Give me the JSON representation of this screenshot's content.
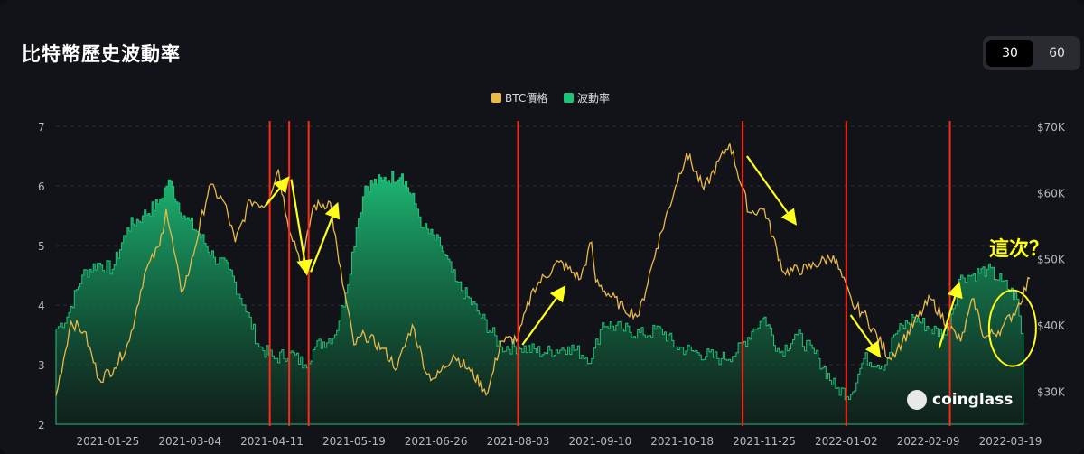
{
  "title": "比特幣歷史波動率",
  "period_options": [
    "30",
    "60"
  ],
  "selected_period": "30",
  "watermark": "coinglass",
  "annotation_text": "這次？",
  "colors": {
    "price": "#e9b949",
    "volatility": "#1ec37a",
    "marker": "#ff2a17",
    "arrow": "#ffff1a",
    "background": "#121318"
  },
  "chart_data": {
    "type": "area",
    "legend": [
      "BTC價格",
      "波動率"
    ],
    "legend_position": "top-center",
    "grid": true,
    "x_tick_labels": [
      "2021-01-25",
      "2021-03-04",
      "2021-04-11",
      "2021-05-19",
      "2021-06-26",
      "2021-08-03",
      "2021-09-10",
      "2021-10-18",
      "2021-11-25",
      "2022-01-02",
      "2022-02-09",
      "2022-03-19"
    ],
    "x_range": [
      "2021-01-01",
      "2022-03-28"
    ],
    "y_left": {
      "label": "",
      "range": [
        2,
        7
      ],
      "ticks": [
        "2",
        "3",
        "4",
        "5",
        "6",
        "7"
      ]
    },
    "y_right": {
      "label": "",
      "range": [
        25000,
        70000
      ],
      "ticks": [
        "$30K",
        "$40K",
        "$50K",
        "$60K",
        "$70K"
      ]
    },
    "series": [
      {
        "name": "BTC價格",
        "axis": "right",
        "points": [
          [
            "2021-01-01",
            29300
          ],
          [
            "2021-01-08",
            40500
          ],
          [
            "2021-01-14",
            39000
          ],
          [
            "2021-01-21",
            31800
          ],
          [
            "2021-01-28",
            33500
          ],
          [
            "2021-02-04",
            37600
          ],
          [
            "2021-02-11",
            47800
          ],
          [
            "2021-02-18",
            52000
          ],
          [
            "2021-02-21",
            57500
          ],
          [
            "2021-02-28",
            45000
          ],
          [
            "2021-03-04",
            48500
          ],
          [
            "2021-03-13",
            61000
          ],
          [
            "2021-03-20",
            58500
          ],
          [
            "2021-03-25",
            52500
          ],
          [
            "2021-04-01",
            58800
          ],
          [
            "2021-04-08",
            58100
          ],
          [
            "2021-04-14",
            63500
          ],
          [
            "2021-04-18",
            56000
          ],
          [
            "2021-04-25",
            49000
          ],
          [
            "2021-04-30",
            57800
          ],
          [
            "2021-05-08",
            58500
          ],
          [
            "2021-05-12",
            49500
          ],
          [
            "2021-05-19",
            37000
          ],
          [
            "2021-05-24",
            38500
          ],
          [
            "2021-06-01",
            36500
          ],
          [
            "2021-06-08",
            33500
          ],
          [
            "2021-06-15",
            40000
          ],
          [
            "2021-06-22",
            32500
          ],
          [
            "2021-06-26",
            32000
          ],
          [
            "2021-07-04",
            35500
          ],
          [
            "2021-07-12",
            33000
          ],
          [
            "2021-07-20",
            29800
          ],
          [
            "2021-07-26",
            37500
          ],
          [
            "2021-08-03",
            38000
          ],
          [
            "2021-08-10",
            45500
          ],
          [
            "2021-08-22",
            49500
          ],
          [
            "2021-09-01",
            47000
          ],
          [
            "2021-09-06",
            52500
          ],
          [
            "2021-09-08",
            46500
          ],
          [
            "2021-09-21",
            42500
          ],
          [
            "2021-09-28",
            41500
          ],
          [
            "2021-10-06",
            51500
          ],
          [
            "2021-10-15",
            61000
          ],
          [
            "2021-10-20",
            66000
          ],
          [
            "2021-10-28",
            60500
          ],
          [
            "2021-11-09",
            67500
          ],
          [
            "2021-11-18",
            57000
          ],
          [
            "2021-11-25",
            57500
          ],
          [
            "2021-12-04",
            48000
          ],
          [
            "2021-12-15",
            48500
          ],
          [
            "2021-12-27",
            50500
          ],
          [
            "2022-01-05",
            43000
          ],
          [
            "2022-01-10",
            41800
          ],
          [
            "2022-01-22",
            35000
          ],
          [
            "2022-01-28",
            37500
          ],
          [
            "2022-02-10",
            44000
          ],
          [
            "2022-02-18",
            40000
          ],
          [
            "2022-02-24",
            37500
          ],
          [
            "2022-03-02",
            44000
          ],
          [
            "2022-03-07",
            38000
          ],
          [
            "2022-03-15",
            39500
          ],
          [
            "2022-03-22",
            42500
          ],
          [
            "2022-03-28",
            47000
          ]
        ]
      },
      {
        "name": "波動率",
        "axis": "left",
        "points": [
          [
            "2021-01-01",
            3.6
          ],
          [
            "2021-01-06",
            3.8
          ],
          [
            "2021-01-13",
            4.5
          ],
          [
            "2021-01-20",
            4.7
          ],
          [
            "2021-01-27",
            4.6
          ],
          [
            "2021-02-03",
            5.3
          ],
          [
            "2021-02-10",
            5.5
          ],
          [
            "2021-02-17",
            5.7
          ],
          [
            "2021-02-22",
            6.1
          ],
          [
            "2021-03-01",
            5.5
          ],
          [
            "2021-03-08",
            5.2
          ],
          [
            "2021-03-15",
            4.8
          ],
          [
            "2021-03-22",
            4.6
          ],
          [
            "2021-03-29",
            4.0
          ],
          [
            "2021-04-05",
            3.3
          ],
          [
            "2021-04-12",
            3.1
          ],
          [
            "2021-04-19",
            3.2
          ],
          [
            "2021-04-26",
            3.0
          ],
          [
            "2021-05-01",
            3.3
          ],
          [
            "2021-05-10",
            3.5
          ],
          [
            "2021-05-15",
            4.2
          ],
          [
            "2021-05-20",
            5.3
          ],
          [
            "2021-05-24",
            6.0
          ],
          [
            "2021-06-01",
            6.1
          ],
          [
            "2021-06-10",
            6.2
          ],
          [
            "2021-06-16",
            5.7
          ],
          [
            "2021-06-20",
            5.3
          ],
          [
            "2021-06-28",
            5.0
          ],
          [
            "2021-07-05",
            4.4
          ],
          [
            "2021-07-15",
            3.9
          ],
          [
            "2021-07-26",
            3.3
          ],
          [
            "2021-08-03",
            3.3
          ],
          [
            "2021-08-15",
            3.2
          ],
          [
            "2021-08-26",
            3.3
          ],
          [
            "2021-09-06",
            3.1
          ],
          [
            "2021-09-11",
            3.7
          ],
          [
            "2021-09-20",
            3.6
          ],
          [
            "2021-09-30",
            3.5
          ],
          [
            "2021-10-08",
            3.6
          ],
          [
            "2021-10-15",
            3.3
          ],
          [
            "2021-10-25",
            3.2
          ],
          [
            "2021-11-05",
            3.1
          ],
          [
            "2021-11-12",
            3.2
          ],
          [
            "2021-11-20",
            3.6
          ],
          [
            "2021-11-25",
            3.8
          ],
          [
            "2021-12-02",
            3.2
          ],
          [
            "2021-12-10",
            3.5
          ],
          [
            "2021-12-20",
            3.1
          ],
          [
            "2021-12-28",
            2.6
          ],
          [
            "2022-01-04",
            2.5
          ],
          [
            "2022-01-10",
            3.1
          ],
          [
            "2022-01-20",
            3.0
          ],
          [
            "2022-01-24",
            3.5
          ],
          [
            "2022-02-02",
            3.8
          ],
          [
            "2022-02-10",
            3.6
          ],
          [
            "2022-02-17",
            3.5
          ],
          [
            "2022-02-24",
            4.5
          ],
          [
            "2022-03-01",
            4.5
          ],
          [
            "2022-03-08",
            4.6
          ],
          [
            "2022-03-15",
            4.4
          ],
          [
            "2022-03-22",
            4.1
          ],
          [
            "2022-03-25",
            3.2
          ]
        ]
      }
    ],
    "marker_dates": [
      "2021-04-10",
      "2021-04-19",
      "2021-04-28",
      "2021-08-03",
      "2021-11-15",
      "2022-01-02",
      "2022-02-19"
    ],
    "arrows": [
      {
        "from": [
          "2021-04-08",
          58000
        ],
        "to": [
          "2021-04-18",
          62000
        ]
      },
      {
        "from": [
          "2021-04-20",
          62000
        ],
        "to": [
          "2021-04-27",
          48000
        ]
      },
      {
        "from": [
          "2021-04-29",
          48000
        ],
        "to": [
          "2021-05-11",
          58000
        ]
      },
      {
        "from": [
          "2021-08-05",
          37000
        ],
        "to": [
          "2021-08-24",
          45500
        ]
      },
      {
        "from": [
          "2021-11-17",
          65500
        ],
        "to": [
          "2021-12-09",
          55500
        ]
      },
      {
        "from": [
          "2022-01-04",
          41500
        ],
        "to": [
          "2022-01-17",
          35500
        ]
      },
      {
        "from": [
          "2022-02-14",
          36500
        ],
        "to": [
          "2022-02-23",
          46000
        ]
      }
    ],
    "highlight_ellipse_center": [
      "2022-03-20",
      39500
    ]
  }
}
